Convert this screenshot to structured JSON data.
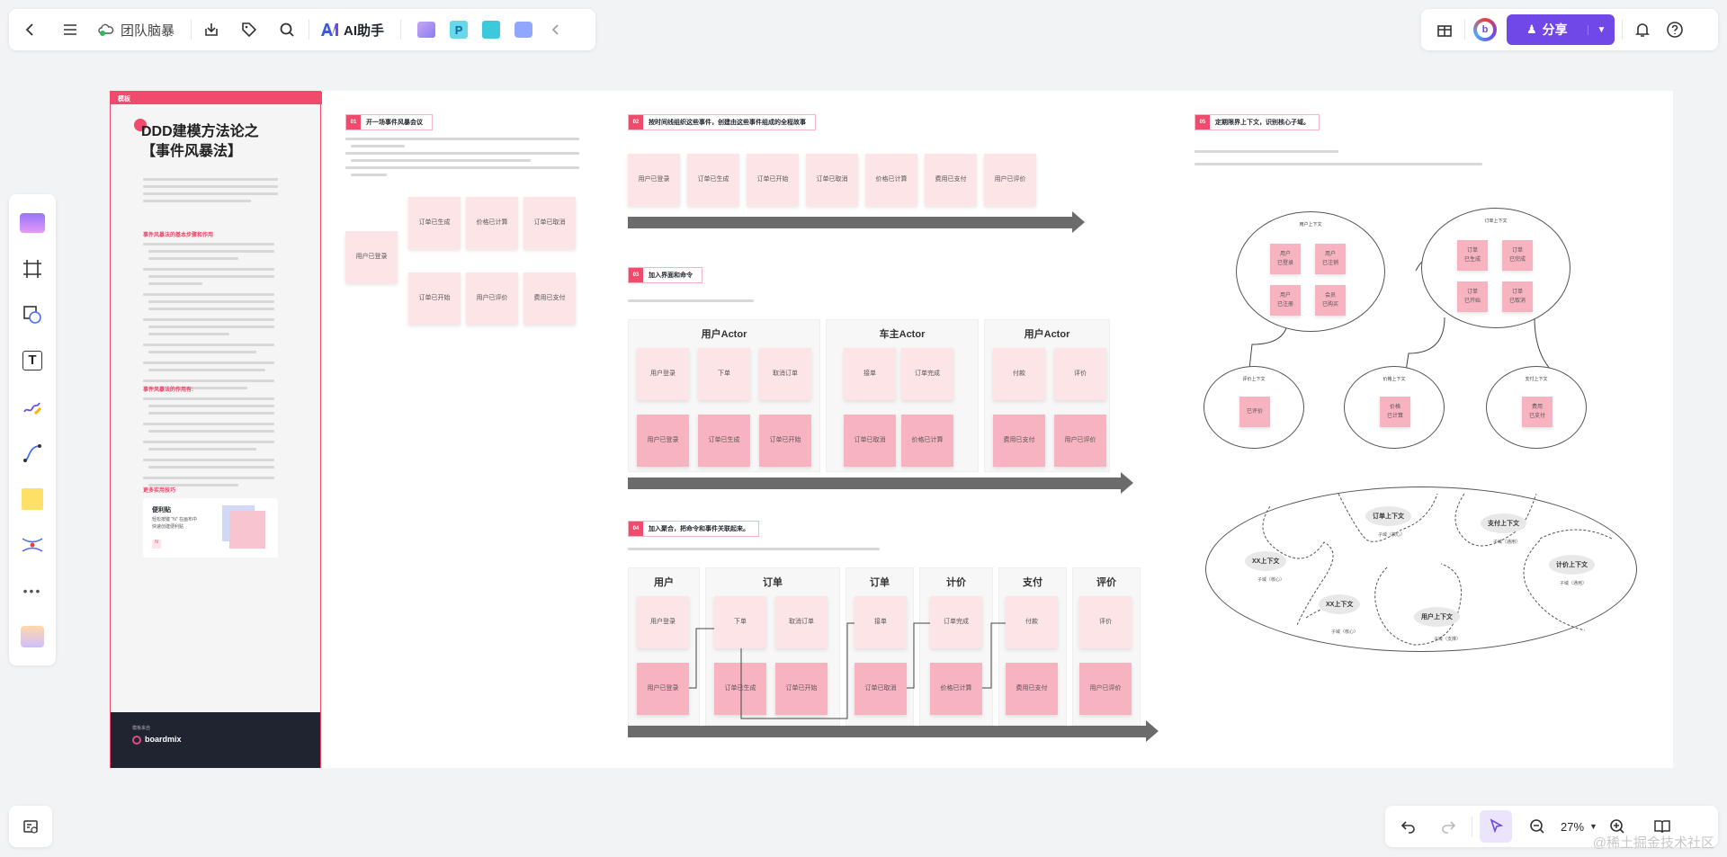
{
  "top_left_toolbar": {
    "board_name": "团队脑暴",
    "ai_label": "AI助手"
  },
  "top_right_toolbar": {
    "share_label": "分享"
  },
  "bottom_toolbar": {
    "zoom": "27%"
  },
  "watermark": "@稀土掘金技术社区",
  "board": {
    "intro": {
      "tag": "模板",
      "title_line1": "DDD建模方法论之",
      "title_line2": "【事件风暴法】",
      "section1": "事件风暴法的基本步骤和作用",
      "section2": "事件风暴法的作用有:",
      "section3": "更多实用技巧",
      "tip_title": "便利贴",
      "tip_text1": "轻松按键 \"N\" 在画布中",
      "tip_text2": "快速创建便利贴",
      "footer_small": "模板来自",
      "brand": "boardmix"
    },
    "s01": {
      "num": "01",
      "title": "开一场事件风暴会议"
    },
    "s02": {
      "num": "02",
      "title": "按时间线组织这些事件，创建由这些事件组成的全程故事"
    },
    "s03": {
      "num": "03",
      "title": "加入界面和命令"
    },
    "s04": {
      "num": "04",
      "title": "加入聚合，把命令和事件关联起来。"
    },
    "s05": {
      "num": "05",
      "title": "定期限界上下文，识别核心子域。"
    },
    "s01_notes": [
      "订单已生成",
      "价格已计算",
      "订单已取消",
      "用户已登录",
      "订单已开始",
      "用户已评价",
      "费用已支付"
    ],
    "s02_notes": [
      "用户已登录",
      "订单已生成",
      "订单已开始",
      "订单已取消",
      "价格已计算",
      "费用已支付",
      "用户已评价"
    ],
    "s03_actors": [
      "用户Actor",
      "车主Actor",
      "用户Actor"
    ],
    "s03_cmds": [
      "用户登录",
      "下单",
      "取消订单",
      "接单",
      "订单完成",
      "付款",
      "评价"
    ],
    "s03_events": [
      "用户已登录",
      "订单已生成",
      "订单已开始",
      "订单已取消",
      "价格已计算",
      "费用已支付",
      "用户已评价"
    ],
    "s04_heads": [
      "用户",
      "订单",
      "订单",
      "计价",
      "支付",
      "评价"
    ],
    "s04_cmds": [
      "用户登录",
      "下单",
      "取消订单",
      "接单",
      "订单完成",
      "付款",
      "评价"
    ],
    "s04_events": [
      "用户已登录",
      "订单已生成",
      "订单已开始",
      "订单已取消",
      "价格已计算",
      "费用已支付",
      "用户已评价"
    ],
    "s05_contexts": {
      "user": {
        "title": "用户上下文",
        "notes": [
          "用户\n已登录",
          "用户\n已注销",
          "用户\n已注册",
          "会员\n已购买"
        ]
      },
      "order": {
        "title": "订单上下文",
        "notes": [
          "订单\n已生成",
          "订单\n已完成",
          "订单\n已开始",
          "订单\n已取消"
        ]
      },
      "review": {
        "title": "评价上下文",
        "notes": [
          "已评价"
        ]
      },
      "pricing": {
        "title": "价格上下文",
        "notes": [
          "价格\n已计算"
        ]
      },
      "payment": {
        "title": "支付上下文",
        "notes": [
          "费用\n已支付"
        ]
      }
    },
    "s05_domains": [
      {
        "name": "XX上下文",
        "sub": "子域（核心）"
      },
      {
        "name": "订单上下文",
        "sub": "子域（核心）"
      },
      {
        "name": "支付上下文",
        "sub": "子域（通用）"
      },
      {
        "name": "计价上下文",
        "sub": "子域（通用）"
      },
      {
        "name": "XX上下文",
        "sub": "子域（核心）"
      },
      {
        "name": "用户上下文",
        "sub": "子域（支撑）"
      }
    ]
  }
}
